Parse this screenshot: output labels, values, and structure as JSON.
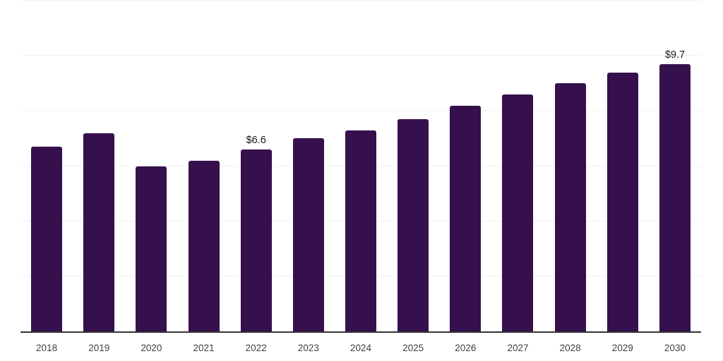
{
  "chart_data": {
    "type": "bar",
    "title": "",
    "xlabel": "",
    "ylabel": "",
    "categories": [
      "2018",
      "2019",
      "2020",
      "2021",
      "2022",
      "2023",
      "2024",
      "2025",
      "2026",
      "2027",
      "2028",
      "2029",
      "2030"
    ],
    "values": [
      6.7,
      7.2,
      6.0,
      6.2,
      6.6,
      7.0,
      7.3,
      7.7,
      8.2,
      8.6,
      9.0,
      9.4,
      9.7
    ],
    "data_labels": {
      "2022": "$6.6",
      "2030": "$9.7"
    },
    "ylim": [
      0,
      12
    ],
    "gridline_interval": 2,
    "grid": "on",
    "legend": "none",
    "colors": {
      "bar": "#36104c",
      "axis_line": "#333333",
      "gridline": "#f2f2f2",
      "tick_label": "#404040",
      "data_label": "#151515",
      "background": "#ffffff"
    }
  }
}
